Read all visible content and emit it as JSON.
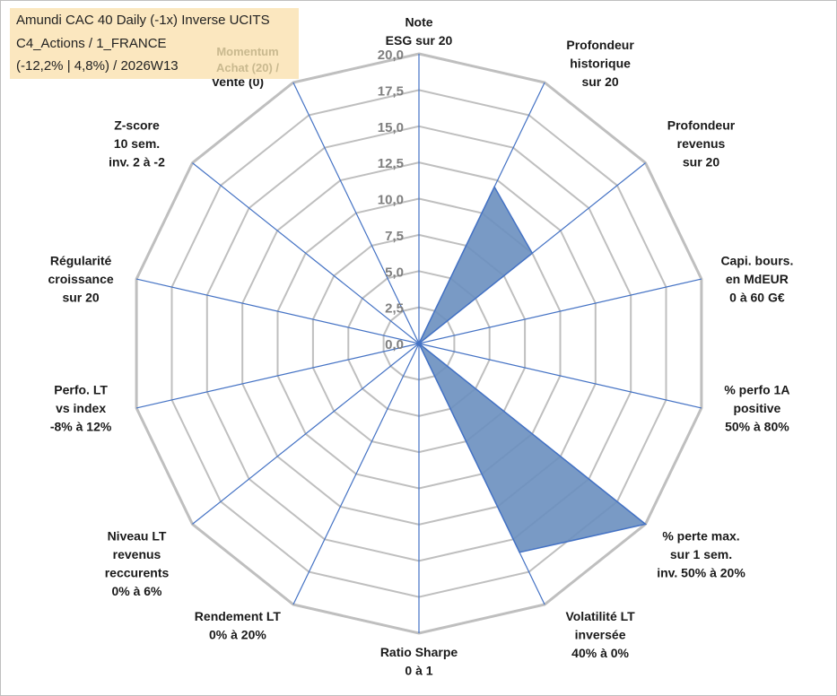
{
  "info": {
    "line1": "Amundi CAC 40 Daily (-1x) Inverse UCITS",
    "line2": "C4_Actions / 1_FRANCE",
    "line3": "(-12,2% | 4,8%) / 2026W13",
    "momentum_line1": "Momentum",
    "momentum_line2": "Achat (20) /"
  },
  "chart_data": {
    "type": "radar",
    "range": [
      0,
      20
    ],
    "tick_labels": [
      "0,0",
      "2,5",
      "5,0",
      "7,5",
      "10,0",
      "12,5",
      "15,0",
      "17,5",
      "20,0"
    ],
    "categories": [
      [
        "Note",
        "ESG sur 20"
      ],
      [
        "Profondeur",
        "historique",
        "sur 20"
      ],
      [
        "Profondeur",
        "revenus",
        "sur 20"
      ],
      [
        "Capi. bours.",
        "en MdEUR",
        "0 à 60 G€"
      ],
      [
        "% perfo 1A",
        "positive",
        "50% à 80%"
      ],
      [
        "% perte max.",
        "sur 1 sem.",
        "inv. 50% à 20%"
      ],
      [
        "Volatilité LT",
        "inversée",
        "40% à 0%"
      ],
      [
        "Ratio Sharpe",
        "0 à 1"
      ],
      [
        "Rendement LT",
        "0% à 20%"
      ],
      [
        "Niveau LT",
        "revenus",
        "reccurents",
        "0% à 6%"
      ],
      [
        "Perfo. LT",
        "vs index",
        "-8% à 12%"
      ],
      [
        "Régularité",
        "croissance",
        "sur 20"
      ],
      [
        "Z-score",
        "10 sem.",
        "inv. 2 à -2"
      ],
      [
        "Vente (0)"
      ]
    ],
    "values": [
      0,
      12,
      10,
      0,
      0,
      20,
      16,
      0,
      0,
      0,
      0,
      0,
      0,
      0
    ],
    "grid": true,
    "legend": "none",
    "colors": {
      "fill": "#6a8fbf",
      "stroke": "#4472c4",
      "grid": "#bfbfbf",
      "spoke": "#4472c4"
    }
  }
}
